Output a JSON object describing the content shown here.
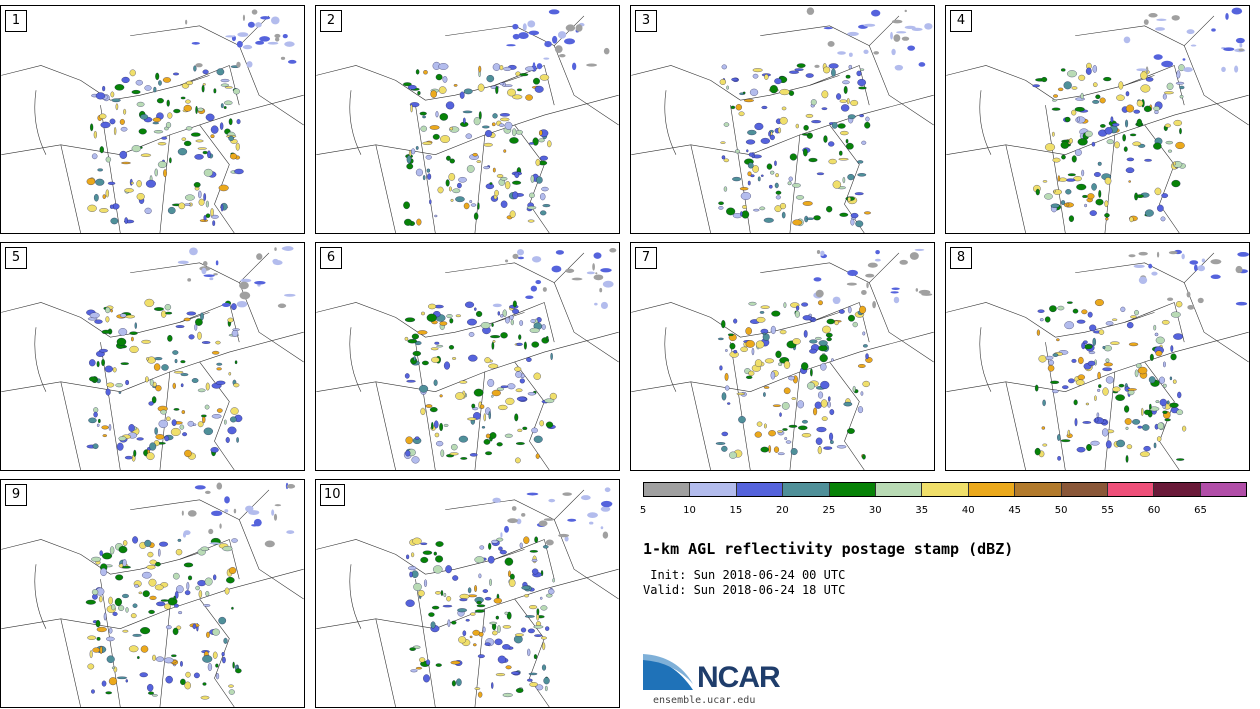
{
  "panels": [
    {
      "label": "1"
    },
    {
      "label": "2"
    },
    {
      "label": "3"
    },
    {
      "label": "4"
    },
    {
      "label": "5"
    },
    {
      "label": "6"
    },
    {
      "label": "7"
    },
    {
      "label": "8"
    },
    {
      "label": "9"
    },
    {
      "label": "10"
    }
  ],
  "colorbar": {
    "colors": [
      "#a0a0a0",
      "#b3bced",
      "#5563dc",
      "#4f9099",
      "#078207",
      "#b9dbb5",
      "#f0df6a",
      "#eba91c",
      "#b27a2c",
      "#8a5738",
      "#ee4f79",
      "#6a1a39",
      "#b14ea8"
    ],
    "ticks": [
      "5",
      "10",
      "15",
      "20",
      "25",
      "30",
      "35",
      "40",
      "45",
      "50",
      "55",
      "60",
      "65"
    ]
  },
  "title": "1-km AGL reflectivity postage stamp (dBZ)",
  "init": " Init: Sun 2018-06-24 00 UTC",
  "valid": "Valid: Sun 2018-06-24 18 UTC",
  "logo": {
    "word": "NCAR",
    "url": "ensemble.ucar.edu",
    "colors": {
      "blue": "#1f72b8",
      "navy": "#1f3d6b"
    }
  }
}
